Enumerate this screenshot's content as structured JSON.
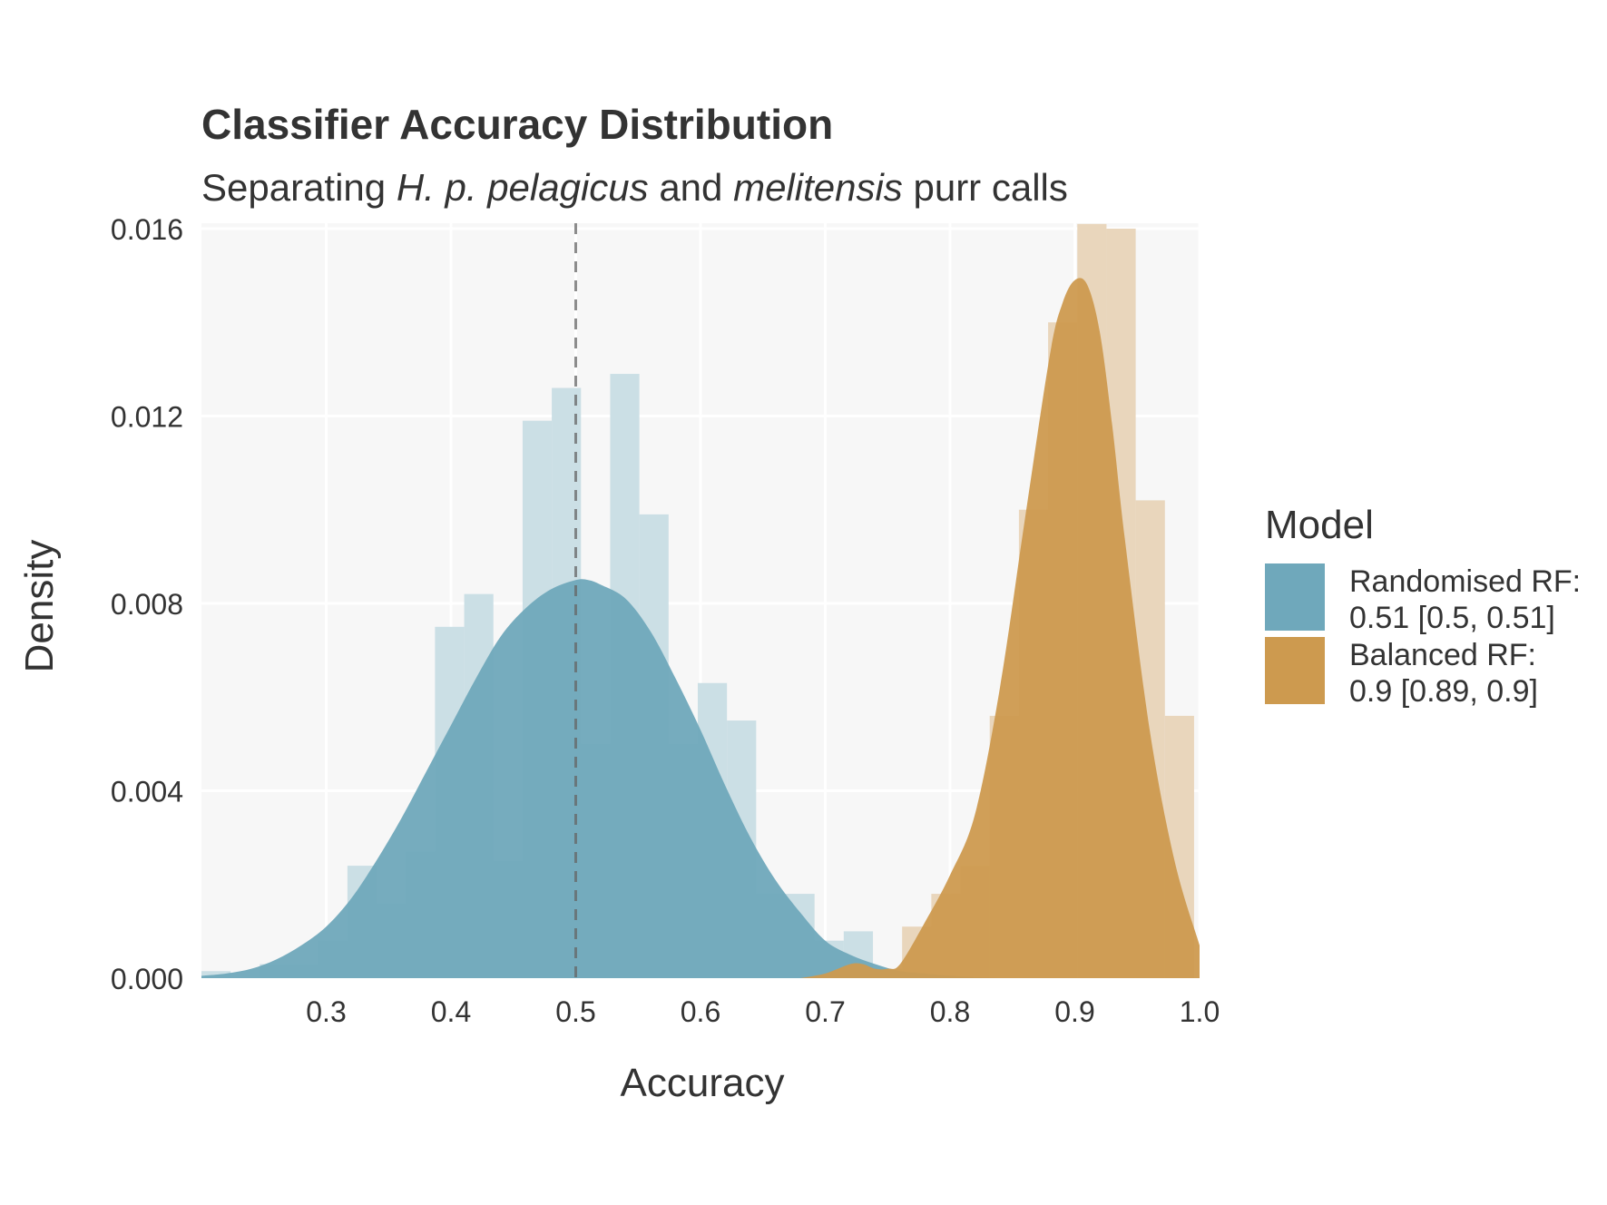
{
  "chart_data": {
    "type": "area",
    "title": "Classifier Accuracy Distribution",
    "subtitle": {
      "parts": [
        {
          "text": "Separating ",
          "italic": false
        },
        {
          "text": "H. p. pelagicus",
          "italic": true
        },
        {
          "text": " and ",
          "italic": false
        },
        {
          "text": "melitensis",
          "italic": true
        },
        {
          "text": " purr calls",
          "italic": false
        }
      ]
    },
    "xlabel": "Accuracy",
    "ylabel": "Density",
    "xlim": [
      0.2,
      1.0
    ],
    "ylim": [
      0,
      0.016
    ],
    "x_ticks": [
      0.3,
      0.4,
      0.5,
      0.6,
      0.7,
      0.8,
      0.9,
      1.0
    ],
    "x_tick_labels": [
      "0.3",
      "0.4",
      "0.5",
      "0.6",
      "0.7",
      "0.8",
      "0.9",
      "1.0"
    ],
    "y_ticks": [
      0,
      0.004,
      0.008,
      0.012,
      0.016
    ],
    "y_tick_labels": [
      "0.000",
      "0.004",
      "0.008",
      "0.012",
      "0.016"
    ],
    "grid": true,
    "reference_line": {
      "x": 0.5,
      "style": "dashed"
    },
    "legend": {
      "title": "Model",
      "position": "right",
      "entries": [
        {
          "line1": "Randomised RF:",
          "line2": "0.51 [0.5, 0.51]"
        },
        {
          "line1": "Balanced RF:",
          "line2": "0.9 [0.89, 0.9]"
        }
      ]
    },
    "series": [
      {
        "name": "Randomised RF",
        "color": "#6fa8bb",
        "hist_color": "#c5dce2",
        "histogram": {
          "bin_width": 0.0234,
          "bin_starts": [
            0.2,
            0.2234,
            0.2468,
            0.2702,
            0.2936,
            0.317,
            0.3404,
            0.3638,
            0.3872,
            0.4106,
            0.434,
            0.4574,
            0.4808,
            0.5042,
            0.5276,
            0.551,
            0.5744,
            0.5978,
            0.6212,
            0.6446,
            0.668,
            0.6914,
            0.7148
          ],
          "densities": [
            0.00015,
            0.0,
            0.0003,
            0.0003,
            0.0008,
            0.0024,
            0.0016,
            0.0027,
            0.0075,
            0.0082,
            0.0025,
            0.0119,
            0.0126,
            0.005,
            0.0129,
            0.0099,
            0.005,
            0.0063,
            0.0055,
            0.0018,
            0.0018,
            0.0008,
            0.001
          ]
        },
        "density": {
          "x": [
            0.2,
            0.22,
            0.24,
            0.26,
            0.28,
            0.3,
            0.32,
            0.34,
            0.36,
            0.38,
            0.4,
            0.42,
            0.44,
            0.46,
            0.48,
            0.5,
            0.51,
            0.52,
            0.54,
            0.56,
            0.58,
            0.6,
            0.62,
            0.64,
            0.66,
            0.68,
            0.7,
            0.72,
            0.74,
            0.76,
            0.78,
            0.8,
            0.82,
            0.84
          ],
          "y": [
            5e-05,
            0.0001,
            0.0002,
            0.0004,
            0.0007,
            0.0011,
            0.0017,
            0.0025,
            0.0034,
            0.0044,
            0.0054,
            0.0064,
            0.0073,
            0.0079,
            0.0083,
            0.0085,
            0.0085,
            0.0084,
            0.0081,
            0.0074,
            0.0064,
            0.0053,
            0.0041,
            0.003,
            0.0021,
            0.0014,
            0.0008,
            0.0005,
            0.0003,
            0.00015,
            0.0001,
            5e-05,
            2e-05,
            0.0
          ]
        }
      },
      {
        "name": "Balanced RF",
        "color": "#cd9a4f",
        "hist_color": "#e7d2b5",
        "histogram": {
          "bin_width": 0.0234,
          "bin_starts": [
            0.7148,
            0.7382,
            0.7616,
            0.785,
            0.8084,
            0.8318,
            0.8552,
            0.8786,
            0.902,
            0.9254,
            0.9488,
            0.9722
          ],
          "densities": [
            0.0002,
            0.0002,
            0.0011,
            0.0018,
            0.0024,
            0.0056,
            0.01,
            0.014,
            0.0161,
            0.016,
            0.0102,
            0.0056
          ]
        },
        "density": {
          "x": [
            0.68,
            0.7,
            0.72,
            0.73,
            0.74,
            0.75,
            0.76,
            0.78,
            0.8,
            0.82,
            0.84,
            0.86,
            0.88,
            0.89,
            0.9,
            0.91,
            0.92,
            0.93,
            0.94,
            0.96,
            0.98,
            1.0
          ],
          "y": [
            0.0,
            0.0001,
            0.0003,
            0.0003,
            0.0002,
            0.0002,
            0.0003,
            0.0012,
            0.0022,
            0.0035,
            0.0062,
            0.0098,
            0.0133,
            0.0144,
            0.0149,
            0.0148,
            0.0138,
            0.0118,
            0.0094,
            0.0053,
            0.0025,
            0.0007
          ]
        }
      }
    ]
  }
}
